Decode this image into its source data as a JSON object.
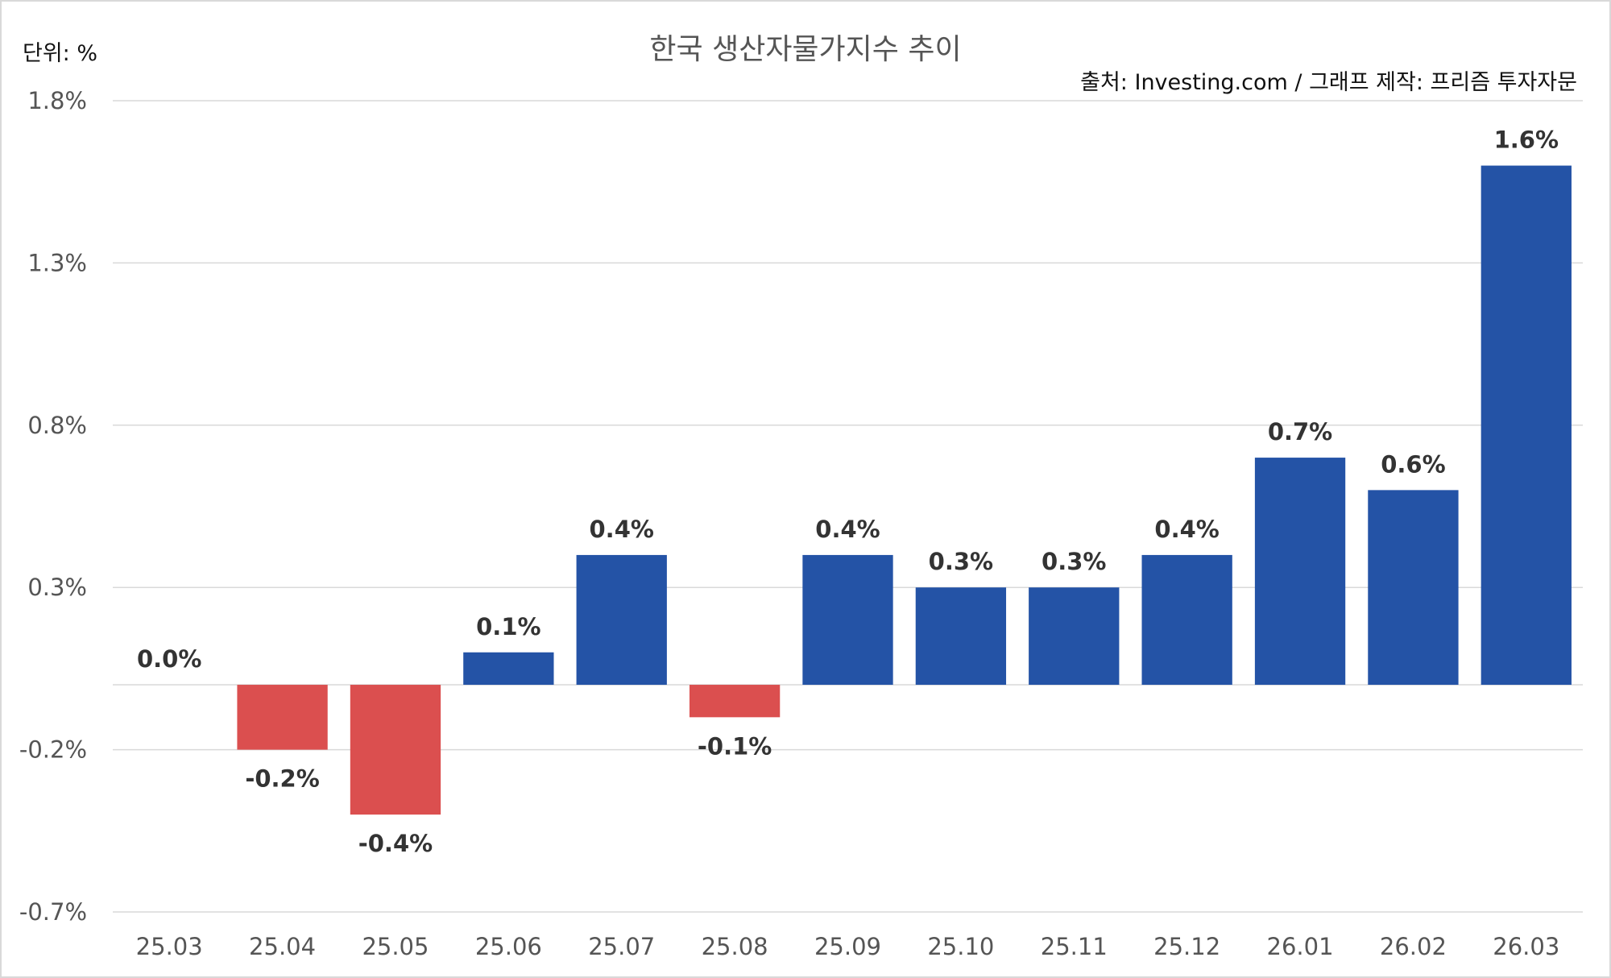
{
  "unit_label": "단위: %",
  "source_label": "출처: Investing.com / 그래프 제작: 프리즘 투자자문",
  "colors": {
    "positive": "#2453a6",
    "negative": "#db4f4f",
    "grid": "#d9d9d9",
    "axis_text": "#555555",
    "label_text": "#333333"
  },
  "chart_data": {
    "type": "bar",
    "title": "한국 생산자물가지수 추이",
    "xlabel": "",
    "ylabel": "",
    "categories": [
      "25.03",
      "25.04",
      "25.05",
      "25.06",
      "25.07",
      "25.08",
      "25.09",
      "25.10",
      "25.11",
      "25.12",
      "26.01",
      "26.02",
      "26.03"
    ],
    "values": [
      0.0,
      -0.2,
      -0.4,
      0.1,
      0.4,
      -0.1,
      0.4,
      0.3,
      0.3,
      0.4,
      0.7,
      0.6,
      1.6
    ],
    "data_labels": [
      "0.0%",
      "-0.2%",
      "-0.4%",
      "0.1%",
      "0.4%",
      "-0.1%",
      "0.4%",
      "0.3%",
      "0.3%",
      "0.4%",
      "0.7%",
      "0.6%",
      "1.6%"
    ],
    "y_ticks": [
      1.8,
      1.3,
      0.8,
      0.3,
      -0.2,
      -0.7
    ],
    "y_tick_labels": [
      "1.8%",
      "1.3%",
      "0.8%",
      "0.3%",
      "-0.2%",
      "-0.7%"
    ],
    "ylim": [
      -0.7,
      1.8
    ],
    "grid": true,
    "legend": "none"
  }
}
